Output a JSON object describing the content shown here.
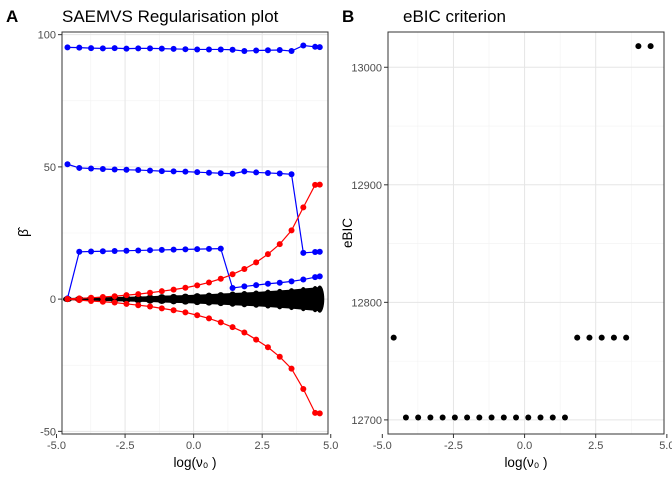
{
  "chart_data": [
    {
      "panel_label": "A",
      "type": "line",
      "title": "SAEMVS Regularisation plot",
      "xlabel": "log(ν₀ )",
      "ylabel": "β̂",
      "xlim": [
        -4.8,
        4.9
      ],
      "ylim": [
        -51,
        101
      ],
      "xticks": [
        -5.0,
        -2.5,
        0.0,
        2.5,
        5.0
      ],
      "xtick_labels": [
        "-5.0",
        "-2.5",
        "0.0",
        "2.5",
        "5.0"
      ],
      "yticks": [
        -50,
        0,
        50,
        100
      ],
      "ytick_labels": [
        "-50",
        "0",
        "50",
        "100"
      ],
      "grid": true,
      "x": [
        -4.6,
        -4.17,
        -3.74,
        -3.31,
        -2.88,
        -2.45,
        -2.02,
        -1.59,
        -1.16,
        -0.73,
        -0.3,
        0.13,
        0.56,
        0.99,
        1.42,
        1.85,
        2.28,
        2.71,
        3.14,
        3.57,
        4.0,
        4.43,
        4.6
      ],
      "series": [
        {
          "color": "#0000ff",
          "values": [
            95.2,
            95.1,
            94.9,
            94.8,
            94.9,
            94.7,
            94.8,
            94.8,
            94.7,
            94.6,
            94.5,
            94.4,
            94.4,
            94.4,
            94.3,
            93.8,
            94.0,
            94.1,
            94.2,
            93.8,
            95.9,
            95.4,
            95.3
          ]
        },
        {
          "color": "#0000ff",
          "values": [
            51.0,
            49.6,
            49.4,
            49.2,
            49.0,
            48.9,
            48.8,
            48.6,
            48.4,
            48.3,
            48.2,
            48.0,
            47.8,
            47.6,
            47.4,
            48.3,
            47.9,
            47.7,
            47.5,
            47.2,
            17.5,
            17.8,
            17.9
          ]
        },
        {
          "color": "#0000ff",
          "values": [
            0.3,
            17.9,
            18.0,
            18.1,
            18.2,
            18.3,
            18.4,
            18.5,
            18.6,
            18.7,
            18.8,
            18.9,
            19.0,
            19.1,
            4.2,
            4.8,
            5.3,
            5.8,
            6.2,
            6.7,
            7.4,
            8.3,
            8.6
          ]
        },
        {
          "color": "#ff0000",
          "values": [
            0.1,
            0.3,
            0.5,
            0.8,
            1.1,
            1.5,
            1.9,
            2.4,
            3.0,
            3.6,
            4.3,
            5.2,
            6.3,
            7.7,
            9.4,
            11.4,
            13.9,
            17.0,
            20.8,
            26.0,
            34.7,
            43.2,
            43.3
          ]
        },
        {
          "color": "#ff0000",
          "values": [
            0.0,
            -0.4,
            -0.7,
            -1.0,
            -1.3,
            -1.8,
            -2.3,
            -2.8,
            -3.5,
            -4.2,
            -5.0,
            -6.1,
            -7.3,
            -8.8,
            -10.6,
            -12.6,
            -15.3,
            -18.2,
            -21.8,
            -26.3,
            -34.0,
            -43.0,
            -43.2
          ]
        }
      ],
      "background_band_note": "many black series",
      "black_band_halfwidth": [
        0.4,
        0.5,
        0.6,
        0.7,
        0.8,
        0.9,
        1.0,
        1.1,
        1.3,
        1.4,
        1.5,
        1.7,
        1.9,
        2.1,
        2.3,
        2.5,
        2.7,
        3.0,
        3.3,
        3.6,
        4.0,
        4.4,
        4.6
      ]
    },
    {
      "panel_label": "B",
      "type": "scatter",
      "title": "eBIC criterion",
      "xlabel": "log(ν₀ )",
      "ylabel": "eBIC",
      "xlim": [
        -4.8,
        4.9
      ],
      "ylim": [
        12688,
        13030
      ],
      "xticks": [
        -5.0,
        -2.5,
        0.0,
        2.5,
        5.0
      ],
      "xtick_labels": [
        "-5.0",
        "-2.5",
        "0.0",
        "2.5",
        "5.0"
      ],
      "yticks": [
        12700,
        12800,
        12900,
        13000
      ],
      "ytick_labels": [
        "12700",
        "12800",
        "12900",
        "13000"
      ],
      "grid": true,
      "x": [
        -4.6,
        -4.17,
        -3.74,
        -3.31,
        -2.88,
        -2.45,
        -2.02,
        -1.59,
        -1.16,
        -0.73,
        -0.3,
        0.13,
        0.56,
        0.99,
        1.42,
        1.85,
        2.28,
        2.71,
        3.14,
        3.57,
        4.0,
        4.43
      ],
      "values": [
        12770,
        12702,
        12702,
        12702,
        12702,
        12702,
        12702,
        12702,
        12702,
        12702,
        12702,
        12702,
        12702,
        12702,
        12702,
        12770,
        12770,
        12770,
        12770,
        12770,
        13018,
        13018
      ],
      "point_color": "#000000"
    }
  ]
}
